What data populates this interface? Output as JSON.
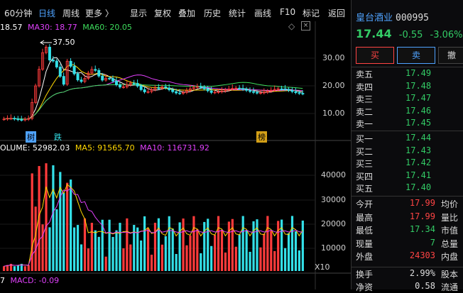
{
  "toolbar": {
    "items": [
      "60分钟",
      "日线",
      "周线",
      "更多 〉",
      "显示",
      "复权",
      "叠加",
      "历史",
      "统计",
      "画线",
      "F10",
      "标记",
      "返回"
    ],
    "active": "日线"
  },
  "ma_legend": {
    "ma_prev": "18.57",
    "ma30": "MA30: 18.77",
    "ma60": "MA60: 20.05"
  },
  "price_axis": [
    "30.00",
    "20.00",
    "10.00"
  ],
  "annotation_high": "37.50",
  "event_tags": [
    "树",
    "跌",
    "榜"
  ],
  "volume_legend": {
    "vol": "OLUME: 52982.03",
    "ma5": "MA5: 91565.70",
    "ma10": "MA10: 116731.92"
  },
  "volume_axis": [
    "40000",
    "30000",
    "20000",
    "10000"
  ],
  "volume_unit": "X10",
  "macd_legend": {
    "prefix": "7",
    "macd": "MACD: -0.09"
  },
  "stock": {
    "name": "皇台酒业",
    "code": "000995",
    "price": "17.44",
    "change": "-0.55",
    "pct": "-3.06%"
  },
  "buttons": {
    "buy": "买",
    "sell": "卖",
    "cancel": "撤"
  },
  "order_book": {
    "asks": [
      {
        "label": "卖五",
        "price": "17.49"
      },
      {
        "label": "卖四",
        "price": "17.48"
      },
      {
        "label": "卖三",
        "price": "17.47"
      },
      {
        "label": "卖二",
        "price": "17.46"
      },
      {
        "label": "卖一",
        "price": "17.45"
      }
    ],
    "bids": [
      {
        "label": "买一",
        "price": "17.44"
      },
      {
        "label": "买二",
        "price": "17.43"
      },
      {
        "label": "买三",
        "price": "17.42"
      },
      {
        "label": "买四",
        "price": "17.41"
      },
      {
        "label": "买五",
        "price": "17.40"
      }
    ]
  },
  "stats": [
    {
      "label": "今开",
      "value": "17.99",
      "label2": "均价"
    },
    {
      "label": "最高",
      "value": "17.99",
      "label2": "量比"
    },
    {
      "label": "最低",
      "value": "17.34",
      "label2": "市值"
    },
    {
      "label": "现量",
      "value": "7",
      "label2": "总量"
    },
    {
      "label": "外盘",
      "value": "24303",
      "label2": "内盘"
    }
  ],
  "stats2": [
    {
      "label": "换手",
      "value": "2.99%",
      "label2": "股本"
    },
    {
      "label": "净资",
      "value": "0.58",
      "label2": "流通"
    }
  ],
  "colors": {
    "up": "#ff3b3b",
    "down": "#33e0e8",
    "ma5": "#ffffff",
    "ma10": "#ffd700",
    "ma30": "#e040fb",
    "ma60": "#3ddc5c",
    "blue": "#4fa3ff",
    "green": "#33cc66"
  }
}
